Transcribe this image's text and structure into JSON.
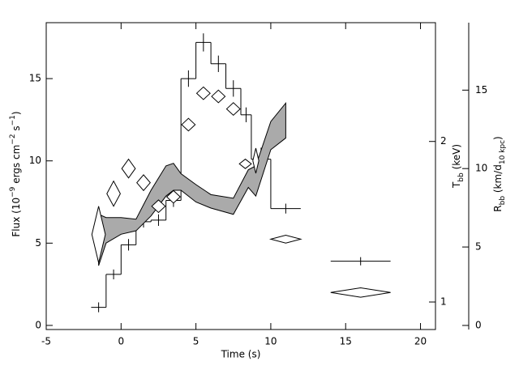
{
  "chart_data": {
    "type": "combo",
    "xlabel": "Time (s)",
    "ylabel": [
      "Flux (10",
      "−9",
      " ergs cm",
      "−2",
      " s",
      "−1",
      ")"
    ],
    "y2label": [
      "T",
      "bb",
      " (keV)"
    ],
    "y3label": [
      "R",
      "bb",
      " (km/d",
      "10 kpc",
      ")"
    ],
    "xlim": [
      -5,
      21
    ],
    "xticks": [
      -5,
      0,
      5,
      10,
      15,
      20
    ],
    "ylim": [
      -0.25,
      18.4
    ],
    "yticks": [
      0,
      5,
      10,
      15
    ],
    "y2lim": [
      0.888,
      3.34
    ],
    "y2ticks": [
      1,
      2
    ],
    "y2log": true,
    "y3lim": [
      -0.26,
      19.3
    ],
    "y3ticks": [
      0,
      5,
      10,
      15
    ],
    "series": [
      {
        "type": "step",
        "axis": "y",
        "color": "#000000",
        "x": [
          -1.5,
          -0.5,
          0.5,
          1.5,
          2.5,
          3.5,
          4.5,
          5.5,
          6.5,
          7.5,
          8.35,
          9.35,
          11,
          16
        ],
        "xerr": [
          0.5,
          0.5,
          0.5,
          0.5,
          0.5,
          0.5,
          0.5,
          0.5,
          0.5,
          0.5,
          0.35,
          0.65,
          1,
          2
        ],
        "values": [
          1.1,
          3.1,
          4.9,
          6.3,
          6.4,
          7.6,
          15.0,
          17.2,
          15.9,
          14.4,
          12.8,
          10.1,
          7.1,
          3.9
        ],
        "yerr": [
          0.3,
          0.3,
          0.35,
          0.35,
          0.35,
          0.4,
          0.5,
          0.55,
          0.5,
          0.5,
          0.45,
          0.7,
          0.3,
          0.25
        ]
      },
      {
        "type": "band",
        "axis": "y2",
        "color": "#aaaaaa",
        "x": [
          -1.5,
          -1,
          0,
          1,
          2,
          3,
          3.5,
          4,
          5,
          6,
          7.5,
          8.5,
          9,
          10,
          11
        ],
        "upper": [
          1.46,
          1.44,
          1.44,
          1.43,
          1.62,
          1.8,
          1.82,
          1.74,
          1.66,
          1.59,
          1.565,
          1.77,
          1.8,
          2.18,
          2.36
        ],
        "lower": [
          1.17,
          1.29,
          1.34,
          1.36,
          1.45,
          1.58,
          1.62,
          1.62,
          1.54,
          1.5,
          1.46,
          1.64,
          1.58,
          1.93,
          2.03
        ]
      },
      {
        "type": "diamond",
        "axis": "y3",
        "color": "#000000",
        "x": [
          -1.5,
          -0.5,
          0.5,
          1.5,
          2.5,
          3.5,
          4.5,
          5.5,
          6.5,
          7.5,
          8.3,
          9.0,
          11,
          16
        ],
        "xerr": [
          0.45,
          0.45,
          0.45,
          0.45,
          0.45,
          0.45,
          0.45,
          0.45,
          0.45,
          0.45,
          0.4,
          0.2,
          1,
          2
        ],
        "values": [
          5.8,
          8.4,
          10.0,
          9.1,
          7.6,
          8.2,
          12.8,
          14.8,
          14.6,
          13.8,
          10.3,
          10.5,
          5.5,
          2.1
        ],
        "yerr": [
          1.8,
          0.8,
          0.6,
          0.5,
          0.4,
          0.4,
          0.4,
          0.4,
          0.4,
          0.4,
          0.3,
          0.8,
          0.25,
          0.3
        ]
      }
    ]
  }
}
